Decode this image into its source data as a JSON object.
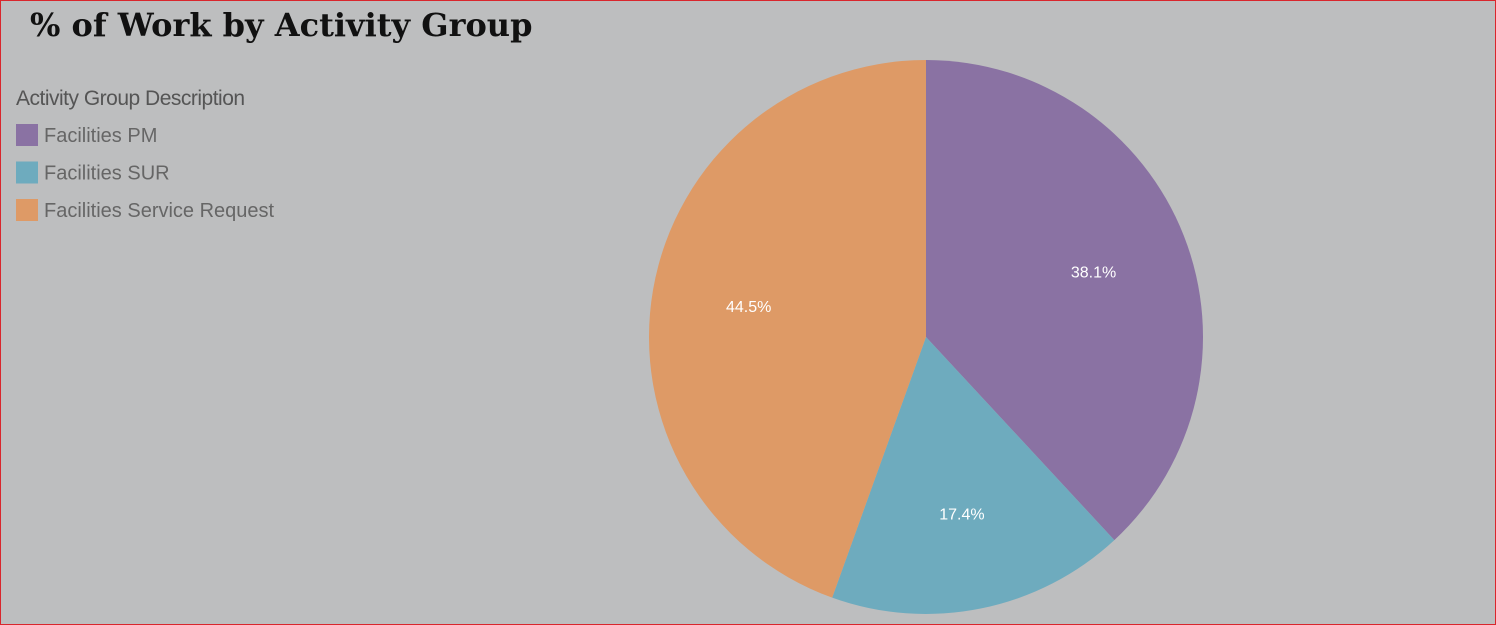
{
  "chart_data": {
    "type": "pie",
    "title": "% of Work by Activity Group",
    "legend_title": "Activity Group Description",
    "categories": [
      "Facilities PM",
      "Facilities SUR",
      "Facilities Service Request"
    ],
    "values": [
      38.1,
      17.4,
      44.5
    ],
    "value_labels": [
      "38.1%",
      "17.4%",
      "44.5%"
    ],
    "colors": [
      "#8a72a3",
      "#6eabbe",
      "#de9a66"
    ],
    "legend": "top-left"
  }
}
